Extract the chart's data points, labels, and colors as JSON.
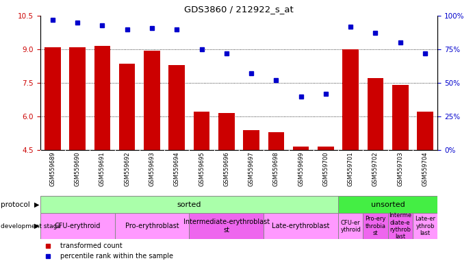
{
  "title": "GDS3860 / 212922_s_at",
  "samples": [
    "GSM559689",
    "GSM559690",
    "GSM559691",
    "GSM559692",
    "GSM559693",
    "GSM559694",
    "GSM559695",
    "GSM559696",
    "GSM559697",
    "GSM559698",
    "GSM559699",
    "GSM559700",
    "GSM559701",
    "GSM559702",
    "GSM559703",
    "GSM559704"
  ],
  "bar_values": [
    9.1,
    9.1,
    9.15,
    8.35,
    8.95,
    8.3,
    6.2,
    6.15,
    5.4,
    5.3,
    4.65,
    4.65,
    9.0,
    7.7,
    7.4,
    6.2
  ],
  "dot_values": [
    97,
    95,
    93,
    90,
    91,
    90,
    75,
    72,
    57,
    52,
    40,
    42,
    92,
    87,
    80,
    72
  ],
  "bar_color": "#cc0000",
  "dot_color": "#0000cc",
  "ylim_left": [
    4.5,
    10.5
  ],
  "ylim_right": [
    0,
    100
  ],
  "yticks_left": [
    4.5,
    6.0,
    7.5,
    9.0,
    10.5
  ],
  "yticks_right": [
    0,
    25,
    50,
    75,
    100
  ],
  "ytick_labels_right": [
    "0%",
    "25%",
    "50%",
    "75%",
    "100%"
  ],
  "grid_values": [
    6.0,
    7.5,
    9.0
  ],
  "sorted_color": "#aaffaa",
  "unsorted_color": "#44ee44",
  "dev_groups": [
    {
      "label": "CFU-erythroid",
      "start": 0,
      "end": 2,
      "color": "#ff99ff"
    },
    {
      "label": "Pro-erythroblast",
      "start": 3,
      "end": 5,
      "color": "#ff99ff"
    },
    {
      "label": "Intermediate-erythroblast\nst",
      "start": 6,
      "end": 8,
      "color": "#ee66ee"
    },
    {
      "label": "Late-erythroblast",
      "start": 9,
      "end": 11,
      "color": "#ff99ff"
    },
    {
      "label": "CFU-er\nythroid",
      "start": 12,
      "end": 12,
      "color": "#ff99ff"
    },
    {
      "label": "Pro-ery\nthrobia\nst",
      "start": 13,
      "end": 13,
      "color": "#ee66ee"
    },
    {
      "label": "Interme\ndiate-e\nrythrob\nlast",
      "start": 14,
      "end": 14,
      "color": "#ee66ee"
    },
    {
      "label": "Late-er\nythrob\nlast",
      "start": 15,
      "end": 15,
      "color": "#ff99ff"
    }
  ],
  "xticklabel_bg": "#d8d8d8",
  "fig_bg": "#ffffff"
}
